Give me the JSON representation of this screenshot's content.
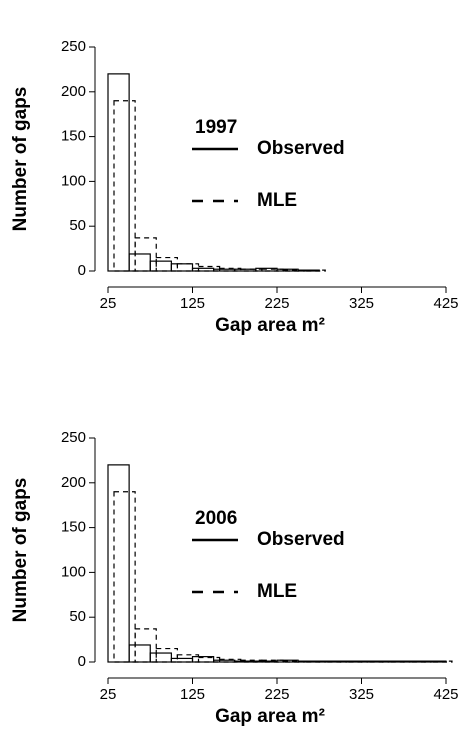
{
  "chart_data": [
    {
      "type": "histogram",
      "annotation": "1997",
      "xlabel": "Gap area m²",
      "ylabel": "Number of gaps",
      "bins": [
        25,
        50,
        75,
        100,
        125,
        150,
        175,
        200,
        225,
        250,
        275
      ],
      "series": [
        {
          "name": "Observed",
          "color": "#000000",
          "style": "solid",
          "values": [
            220,
            19,
            11,
            8,
            3,
            2,
            2,
            3,
            2,
            1
          ]
        },
        {
          "name": "MLE",
          "color": "#000000",
          "style": "dashed",
          "values": [
            190,
            37,
            15,
            8,
            5,
            3,
            2,
            2,
            1,
            1
          ]
        }
      ],
      "xlim": [
        25,
        425
      ],
      "xticks": [
        25,
        125,
        225,
        325,
        425
      ],
      "ylim": [
        0,
        250
      ],
      "yticks": [
        0,
        50,
        100,
        150,
        200,
        250
      ]
    },
    {
      "type": "histogram",
      "annotation": "2006",
      "xlabel": "Gap area m²",
      "ylabel": "Number of gaps",
      "bins": [
        25,
        50,
        75,
        100,
        125,
        150,
        175,
        200,
        225,
        250,
        275,
        300,
        325,
        350,
        375,
        400,
        425
      ],
      "series": [
        {
          "name": "Observed",
          "color": "#000000",
          "style": "solid",
          "values": [
            220,
            19,
            10,
            4,
            6,
            2,
            1,
            1,
            2,
            1,
            1,
            1,
            1,
            1,
            1,
            1
          ]
        },
        {
          "name": "MLE",
          "color": "#000000",
          "style": "dashed",
          "values": [
            190,
            37,
            15,
            8,
            5,
            3,
            2,
            2,
            1,
            1,
            1,
            1,
            1,
            1,
            1,
            1
          ]
        }
      ],
      "xlim": [
        25,
        425
      ],
      "xticks": [
        25,
        125,
        225,
        325,
        425
      ],
      "ylim": [
        0,
        250
      ],
      "yticks": [
        0,
        50,
        100,
        150,
        200,
        250
      ]
    }
  ]
}
